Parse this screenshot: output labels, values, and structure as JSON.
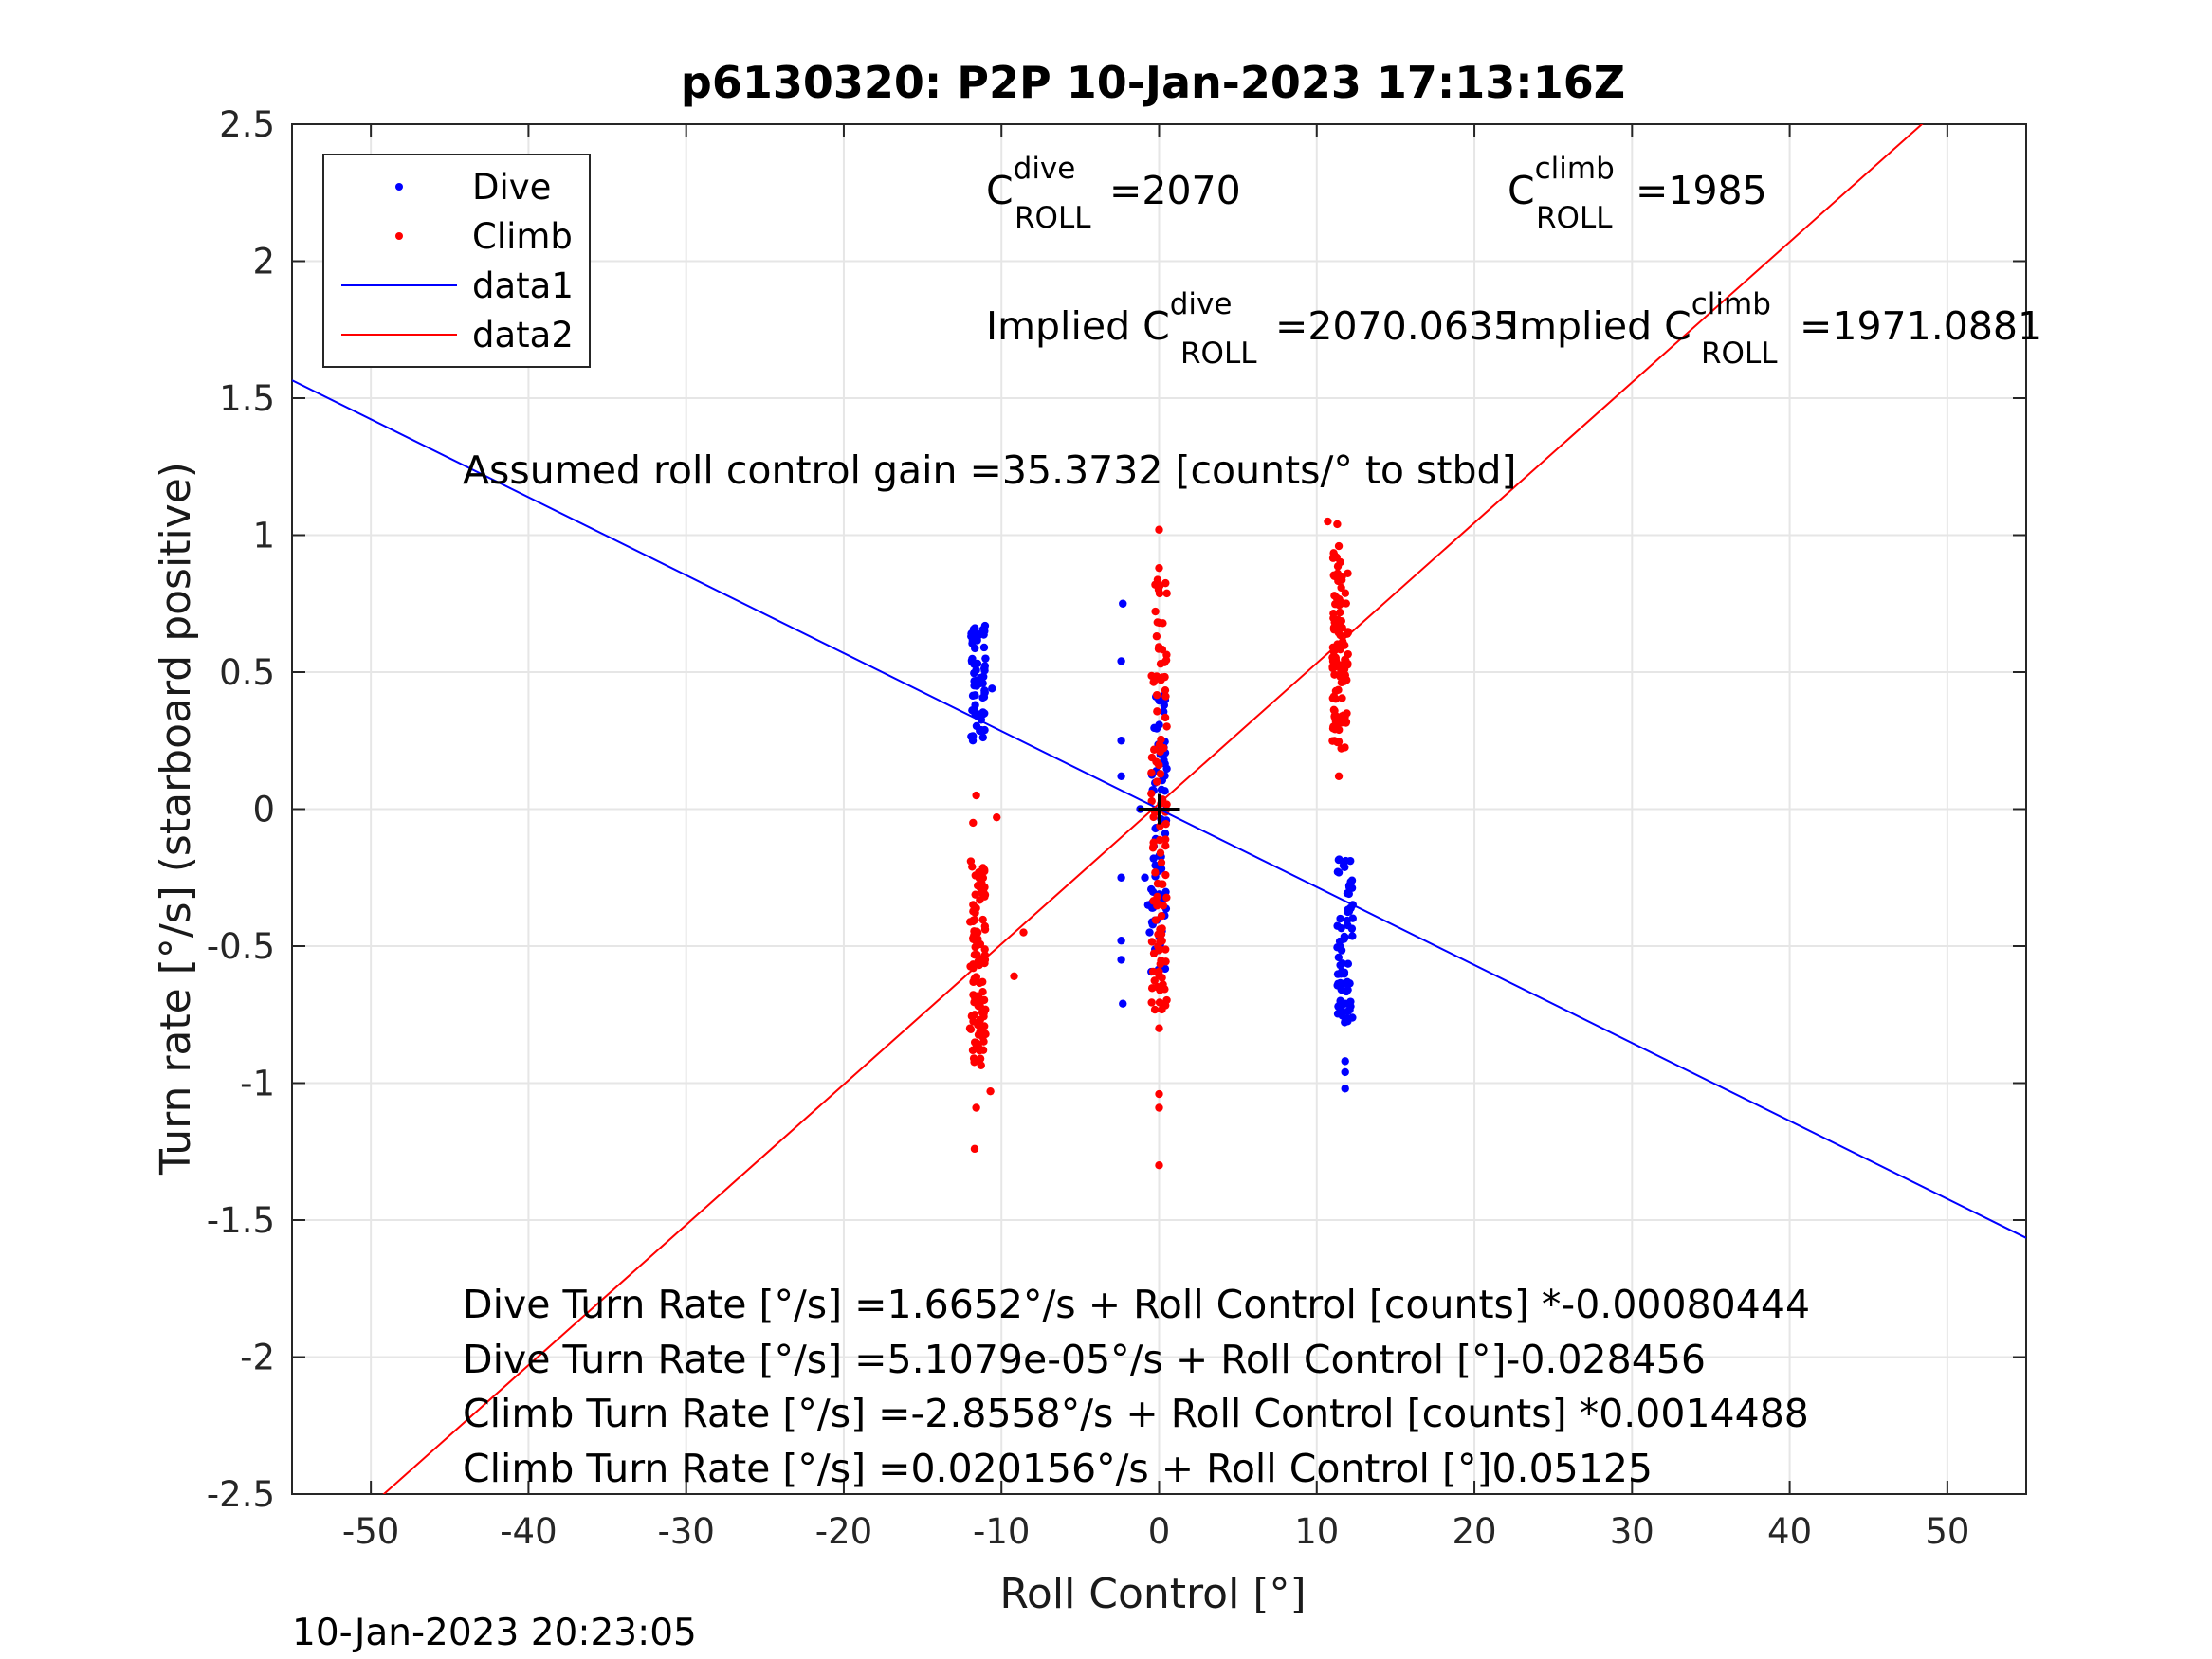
{
  "chart_data": {
    "type": "scatter",
    "title": "p6130320: P2P 10-Jan-2023 17:13:16Z",
    "xlabel": "Roll Control [°]",
    "ylabel": "Turn rate [°/s] (starboard positive)",
    "xlim": [
      -55,
      55
    ],
    "ylim": [
      -2.5,
      2.5
    ],
    "xticks": [
      "-50",
      "-40",
      "-30",
      "-20",
      "-10",
      "0",
      "10",
      "20",
      "30",
      "40",
      "50"
    ],
    "yticks": [
      "-2.5",
      "-2",
      "-1.5",
      "-1",
      "-0.5",
      "0",
      "0.5",
      "1",
      "1.5",
      "2",
      "2.5"
    ],
    "grid": true,
    "legend_position": "top-left",
    "legend": [
      "Dive",
      "Climb",
      "data1",
      "data2"
    ],
    "colors": {
      "dive": "#0000ff",
      "climb": "#ff0000",
      "text": "#000000",
      "grid": "#e6e6e6"
    },
    "series": [
      {
        "name": "Dive",
        "kind": "scatter",
        "color": "#0000ff",
        "groups": [
          {
            "x": -11.5,
            "ymin": 0.25,
            "ymax": 0.68
          },
          {
            "x": 0.0,
            "ymin": -0.6,
            "ymax": 0.42
          },
          {
            "x": 11.8,
            "ymin": -0.78,
            "ymax": -0.18
          }
        ],
        "extra": [
          [
            -10.6,
            0.44
          ],
          [
            -2.3,
            0.75
          ],
          [
            -2.4,
            0.54
          ],
          [
            -2.4,
            0.25
          ],
          [
            -2.4,
            0.12
          ],
          [
            -2.4,
            -0.25
          ],
          [
            -2.4,
            -0.48
          ],
          [
            -2.4,
            -0.55
          ],
          [
            -2.3,
            -0.71
          ],
          [
            -1.2,
            0.0
          ],
          [
            -0.9,
            -0.25
          ],
          [
            -0.7,
            -0.35
          ],
          [
            -0.6,
            -0.45
          ],
          [
            11.8,
            -0.92
          ],
          [
            11.8,
            -0.96
          ],
          [
            11.8,
            -1.02
          ],
          [
            11.8,
            -0.71
          ]
        ]
      },
      {
        "name": "Climb",
        "kind": "scatter",
        "color": "#ff0000",
        "groups": [
          {
            "x": -11.5,
            "ymin": -0.95,
            "ymax": -0.18
          },
          {
            "x": 0.0,
            "ymin": -0.75,
            "ymax": 0.85
          },
          {
            "x": 11.5,
            "ymin": 0.22,
            "ymax": 0.95
          }
        ],
        "extra": [
          [
            -11.6,
            0.05
          ],
          [
            -11.8,
            -0.05
          ],
          [
            -11.6,
            -1.09
          ],
          [
            -11.7,
            -1.24
          ],
          [
            -10.7,
            -1.03
          ],
          [
            -10.3,
            -0.03
          ],
          [
            -9.2,
            -0.61
          ],
          [
            -8.6,
            -0.45
          ],
          [
            0.0,
            1.02
          ],
          [
            0.0,
            0.88
          ],
          [
            0.0,
            -0.8
          ],
          [
            0.0,
            -1.04
          ],
          [
            0.0,
            -1.09
          ],
          [
            0.0,
            -1.3
          ],
          [
            10.7,
            1.05
          ],
          [
            11.3,
            1.04
          ],
          [
            11.4,
            0.96
          ],
          [
            11.4,
            0.12
          ]
        ]
      },
      {
        "name": "data1",
        "kind": "line",
        "color": "#0000ff",
        "slope": -0.028456,
        "intercept": 5.11e-05
      },
      {
        "name": "data2",
        "kind": "line",
        "color": "#ff0000",
        "slope": 0.05125,
        "intercept": 0.020156
      }
    ],
    "center_marker": {
      "x": 0,
      "y": 0,
      "color": "#000000"
    },
    "annotations": {
      "c_dive": {
        "base": "C",
        "sup": "dive",
        "sub": "ROLL",
        "value": "=2070"
      },
      "c_climb": {
        "base": "C",
        "sup": "climb",
        "sub": "ROLL",
        "value": "=1985"
      },
      "implied_dive": {
        "prefix": "Implied C",
        "sup": "dive",
        "sub": "ROLL",
        "value": "=2070.0635"
      },
      "implied_climb": {
        "prefix": "Implied C",
        "sup": "climb",
        "sub": "ROLL",
        "value": "=1971.0881"
      },
      "gain": "Assumed roll control gain =35.3732 [counts/° to stbd]",
      "eq1": "Dive Turn Rate [°/s] =1.6652°/s + Roll Control [counts] *-0.00080444",
      "eq2": "Dive Turn Rate [°/s] =5.1079e-05°/s + Roll Control [°]-0.028456",
      "eq3": "Climb Turn Rate [°/s] =-2.8558°/s + Roll Control [counts] *0.0014488",
      "eq4": "Climb Turn Rate [°/s] =0.020156°/s + Roll Control [°]0.05125"
    },
    "timestamp": "10-Jan-2023 20:23:05"
  }
}
